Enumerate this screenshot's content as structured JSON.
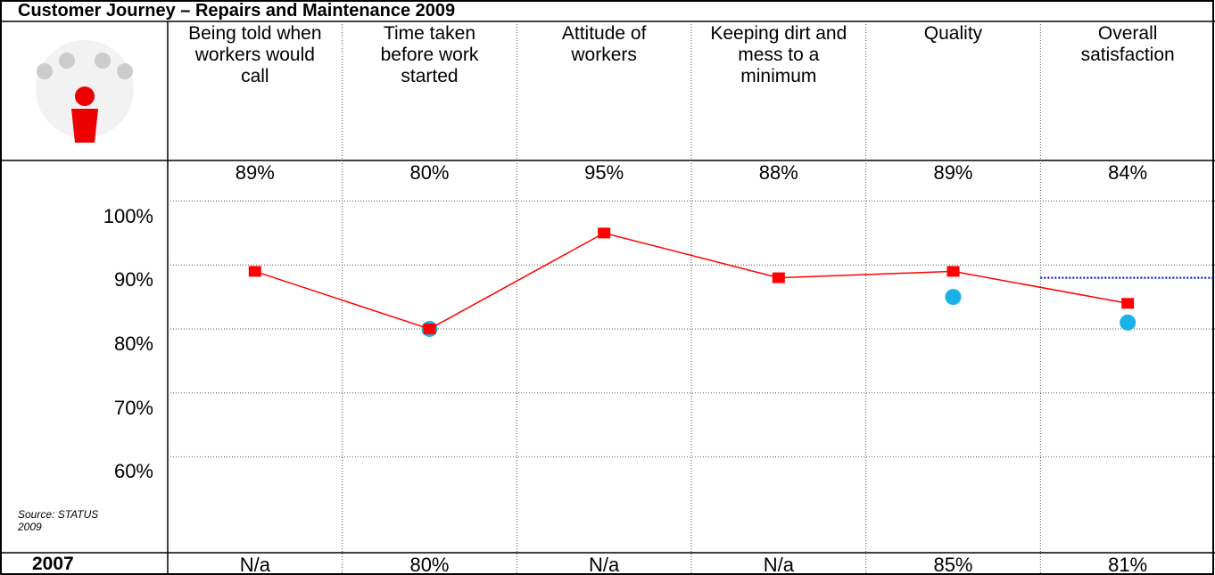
{
  "chart_data": {
    "type": "line",
    "title": "Customer Journey – Repairs and Maintenance 2009",
    "categories": [
      "Being told when workers would call",
      "Time taken before work started",
      "Attitude of workers",
      "Keeping dirt and mess to a minimum",
      "Quality",
      "Overall satisfaction"
    ],
    "series": [
      {
        "color": "#ff0000",
        "values": [
          89,
          80,
          95,
          88,
          89,
          84
        ],
        "value_labels": [
          "89%",
          "80%",
          "95%",
          "88%",
          "89%",
          "84%"
        ]
      },
      {
        "name": "2007",
        "color": "#1ab0e8",
        "values": [
          null,
          80,
          null,
          null,
          85,
          81
        ],
        "value_labels": [
          "N/a",
          "80%",
          "N/a",
          "N/a",
          "85%",
          "81%"
        ]
      }
    ],
    "ylim": [
      45,
      103
    ],
    "yticks": [
      {
        "value": 100,
        "label": "100%"
      },
      {
        "value": 90,
        "label": "90%"
      },
      {
        "value": 80,
        "label": "80%"
      },
      {
        "value": 70,
        "label": "70%"
      },
      {
        "value": 60,
        "label": "60%"
      }
    ],
    "grid": true,
    "source": "Source: STATUS 2009",
    "reference_line": {
      "value": 88,
      "color": "#0000cc"
    }
  }
}
